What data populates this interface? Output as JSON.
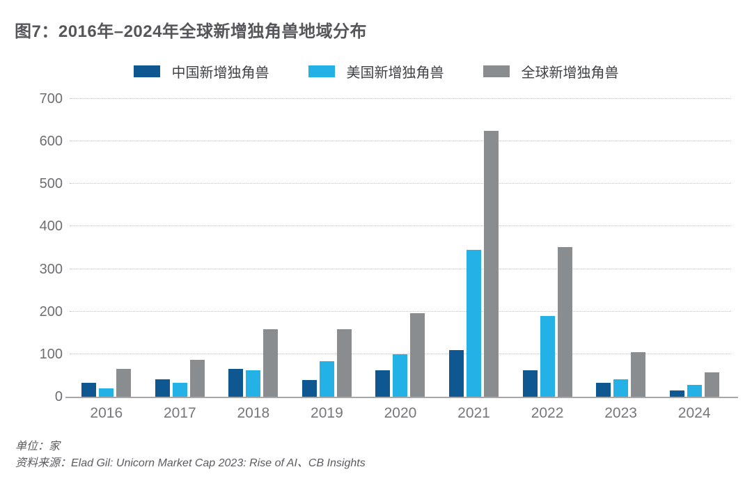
{
  "title": "图7：2016年–2024年全球新增独角兽地域分布",
  "legend": [
    {
      "label": "中国新增独角兽",
      "color": "#0e5791"
    },
    {
      "label": "美国新增独角兽",
      "color": "#24b2e6"
    },
    {
      "label": "全球新增独角兽",
      "color": "#8a8d90"
    }
  ],
  "footer": {
    "unit": "单位：家",
    "source": "资料来源：Elad Gil: Unicorn Market Cap 2023: Rise of AI、CB Insights"
  },
  "chart_data": {
    "type": "bar",
    "title": "图7：2016年–2024年全球新增独角兽地域分布",
    "categories": [
      "2016",
      "2017",
      "2018",
      "2019",
      "2020",
      "2021",
      "2022",
      "2023",
      "2024"
    ],
    "series": [
      {
        "key": "china",
        "name": "中国新增独角兽",
        "color": "#0e5791",
        "values": [
          33,
          41,
          65,
          40,
          62,
          110,
          62,
          33,
          15
        ]
      },
      {
        "key": "us",
        "name": "美国新增独角兽",
        "color": "#24b2e6",
        "values": [
          20,
          33,
          62,
          84,
          99,
          345,
          190,
          41,
          28
        ]
      },
      {
        "key": "global",
        "name": "全球新增独角兽",
        "color": "#8a8d90",
        "values": [
          65,
          86,
          158,
          158,
          197,
          625,
          352,
          104,
          57
        ]
      }
    ],
    "xlabel": "",
    "ylabel": "",
    "unit": "家",
    "ymax": 700,
    "yticks": [
      0,
      100,
      200,
      300,
      400,
      500,
      600,
      700
    ],
    "grid": "horizontal-dotted",
    "legend_position": "top-center"
  }
}
